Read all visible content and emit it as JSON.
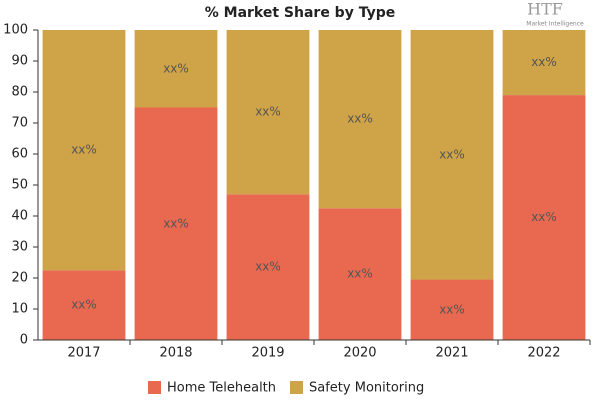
{
  "chart_data": {
    "type": "stacked_bar",
    "title": "% Market Share by Type",
    "categories": [
      "2017",
      "2018",
      "2019",
      "2020",
      "2021",
      "2022"
    ],
    "series": [
      {
        "name": "Home Telehealth",
        "color": "#e8694f",
        "values": [
          22.5,
          75,
          47,
          42.5,
          19.5,
          79
        ],
        "value_labels": [
          "xx%",
          "xx%",
          "xx%",
          "xx%",
          "xx%",
          "xx%"
        ]
      },
      {
        "name": "Safety Monitoring",
        "color": "#cfa347",
        "values": [
          77.5,
          25,
          53,
          57.5,
          80.5,
          21
        ],
        "value_labels": [
          "xx%",
          "xx%",
          "xx%",
          "xx%",
          "xx%",
          "xx%"
        ]
      }
    ],
    "ylim": [
      0,
      100
    ],
    "yticks": [
      0,
      10,
      20,
      30,
      40,
      50,
      60,
      70,
      80,
      90,
      100
    ],
    "grid": false
  },
  "logo": {
    "text": "HTF",
    "subtext": "Market Intelligence"
  }
}
